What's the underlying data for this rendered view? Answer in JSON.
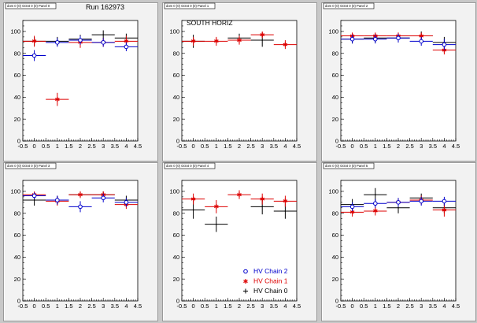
{
  "run_label": "Run 162973",
  "inset_label": "SOUTH HORIZ",
  "pad_titles": [
    "dom 0 (0) Octnt 0 (0) Panel 0",
    "dom 0 (0) Octnt 0 (0) Panel 1",
    "dom 0 (0) Octnt 0 (0) Panel 2",
    "dom 0 (0) Octnt 0 (0) Panel 3",
    "dom 0 (0) Octnt 0 (0) Panel 4",
    "dom 0 (0) Octnt 0 (0) Panel 5"
  ],
  "legend": [
    {
      "label": "HV Chain 2",
      "color": "#0000cc",
      "marker": "open-circle"
    },
    {
      "label": "HV Chain 1",
      "color": "#dd0000",
      "marker": "star"
    },
    {
      "label": "HV Chain 0",
      "color": "#000000",
      "marker": "cross"
    }
  ],
  "colors": {
    "chain2": "#0000cc",
    "chain1": "#dd0000",
    "chain0": "#000000"
  },
  "chart_data": [
    {
      "type": "scatter",
      "xlim": [
        -0.5,
        4.5
      ],
      "ylim": [
        0,
        110
      ],
      "xticks": [
        -0.5,
        0,
        0.5,
        1,
        1.5,
        2,
        2.5,
        3,
        3.5,
        4,
        4.5
      ],
      "yticks": [
        0,
        20,
        40,
        60,
        80,
        100
      ],
      "series": [
        {
          "name": "HV Chain 0",
          "color": "#000000",
          "marker": "cross",
          "x": [
            0,
            1,
            2,
            3,
            4
          ],
          "y": [
            91,
            91,
            93,
            97,
            94
          ],
          "yerr": [
            4,
            4,
            4,
            4,
            4
          ],
          "xerr": 0.5
        },
        {
          "name": "HV Chain 1",
          "color": "#dd0000",
          "marker": "star",
          "x": [
            0,
            1,
            2,
            3,
            4
          ],
          "y": [
            91,
            38,
            90,
            90,
            91
          ],
          "yerr": [
            5,
            6,
            5,
            4,
            5
          ],
          "xerr": 0.5
        },
        {
          "name": "HV Chain 2",
          "color": "#0000cc",
          "marker": "open-circle",
          "x": [
            0,
            1,
            2,
            3,
            4
          ],
          "y": [
            78,
            90,
            92,
            90,
            86
          ],
          "yerr": [
            5,
            4,
            4,
            4,
            4
          ],
          "xerr": 0.5
        }
      ]
    },
    {
      "type": "scatter",
      "xlim": [
        -0.5,
        4.5
      ],
      "ylim": [
        0,
        110
      ],
      "xticks": [
        -0.5,
        0,
        0.5,
        1,
        1.5,
        2,
        2.5,
        3,
        3.5,
        4,
        4.5
      ],
      "yticks": [
        0,
        20,
        40,
        60,
        80,
        100
      ],
      "series": [
        {
          "name": "HV Chain 0",
          "color": "#000000",
          "marker": "cross",
          "x": [
            0,
            2,
            3
          ],
          "y": [
            91,
            94,
            92
          ],
          "yerr": [
            6,
            4,
            6
          ],
          "xerr": 0.5
        },
        {
          "name": "HV Chain 1",
          "color": "#dd0000",
          "marker": "star",
          "x": [
            0,
            1,
            2,
            3,
            4
          ],
          "y": [
            91,
            91,
            92,
            97,
            88
          ],
          "yerr": [
            4,
            4,
            4,
            3,
            4
          ],
          "xerr": 0.5
        }
      ]
    },
    {
      "type": "scatter",
      "xlim": [
        -0.5,
        4.5
      ],
      "ylim": [
        0,
        110
      ],
      "xticks": [
        -0.5,
        0,
        0.5,
        1,
        1.5,
        2,
        2.5,
        3,
        3.5,
        4,
        4.5
      ],
      "yticks": [
        0,
        20,
        40,
        60,
        80,
        100
      ],
      "series": [
        {
          "name": "HV Chain 0",
          "color": "#000000",
          "marker": "cross",
          "x": [
            0,
            1,
            2,
            3,
            4
          ],
          "y": [
            93,
            94,
            94,
            96,
            90
          ],
          "yerr": [
            4,
            4,
            4,
            4,
            5
          ],
          "xerr": 0.5
        },
        {
          "name": "HV Chain 1",
          "color": "#dd0000",
          "marker": "star",
          "x": [
            0,
            1,
            2,
            3,
            4
          ],
          "y": [
            96,
            96,
            96,
            96,
            83
          ],
          "yerr": [
            3,
            3,
            3,
            3,
            4
          ],
          "xerr": 0.5
        },
        {
          "name": "HV Chain 2",
          "color": "#0000cc",
          "marker": "open-circle",
          "x": [
            0,
            1,
            2,
            3,
            4
          ],
          "y": [
            93,
            93,
            94,
            91,
            88
          ],
          "yerr": [
            4,
            4,
            4,
            4,
            5
          ],
          "xerr": 0.5
        }
      ]
    },
    {
      "type": "scatter",
      "xlim": [
        -0.5,
        4.5
      ],
      "ylim": [
        0,
        110
      ],
      "xticks": [
        -0.5,
        0,
        0.5,
        1,
        1.5,
        2,
        2.5,
        3,
        3.5,
        4,
        4.5
      ],
      "yticks": [
        0,
        20,
        40,
        60,
        80,
        100
      ],
      "series": [
        {
          "name": "HV Chain 0",
          "color": "#000000",
          "marker": "cross",
          "x": [
            0,
            1,
            2,
            3,
            4
          ],
          "y": [
            92,
            92,
            97,
            97,
            92
          ],
          "yerr": [
            5,
            4,
            3,
            3,
            4
          ],
          "xerr": 0.5
        },
        {
          "name": "HV Chain 1",
          "color": "#dd0000",
          "marker": "star",
          "x": [
            0,
            1,
            2,
            3,
            4
          ],
          "y": [
            97,
            91,
            97,
            97,
            88
          ],
          "yerr": [
            3,
            4,
            3,
            3,
            4
          ],
          "xerr": 0.5
        },
        {
          "name": "HV Chain 2",
          "color": "#0000cc",
          "marker": "open-circle",
          "x": [
            0,
            1,
            2,
            3,
            4
          ],
          "y": [
            96,
            92,
            86,
            94,
            90
          ],
          "yerr": [
            3,
            4,
            5,
            4,
            4
          ],
          "xerr": 0.5
        }
      ]
    },
    {
      "type": "scatter",
      "xlim": [
        -0.5,
        4.5
      ],
      "ylim": [
        0,
        110
      ],
      "xticks": [
        -0.5,
        0,
        0.5,
        1,
        1.5,
        2,
        2.5,
        3,
        3.5,
        4,
        4.5
      ],
      "yticks": [
        0,
        20,
        40,
        60,
        80,
        100
      ],
      "series": [
        {
          "name": "HV Chain 0",
          "color": "#000000",
          "marker": "cross",
          "x": [
            0,
            1,
            3,
            4
          ],
          "y": [
            83,
            70,
            86,
            82
          ],
          "yerr": [
            8,
            7,
            7,
            7
          ],
          "xerr": 0.5
        },
        {
          "name": "HV Chain 1",
          "color": "#dd0000",
          "marker": "star",
          "x": [
            0,
            1,
            2,
            3,
            4
          ],
          "y": [
            93,
            86,
            97,
            93,
            91
          ],
          "yerr": [
            5,
            6,
            4,
            5,
            5
          ],
          "xerr": 0.5
        }
      ]
    },
    {
      "type": "scatter",
      "xlim": [
        -0.5,
        4.5
      ],
      "ylim": [
        0,
        110
      ],
      "xticks": [
        -0.5,
        0,
        0.5,
        1,
        1.5,
        2,
        2.5,
        3,
        3.5,
        4,
        4.5
      ],
      "yticks": [
        0,
        20,
        40,
        60,
        80,
        100
      ],
      "series": [
        {
          "name": "HV Chain 0",
          "color": "#000000",
          "marker": "cross",
          "x": [
            0,
            1,
            2,
            3,
            4
          ],
          "y": [
            88,
            97,
            85,
            94,
            85
          ],
          "yerr": [
            5,
            6,
            5,
            4,
            5
          ],
          "xerr": 0.5
        },
        {
          "name": "HV Chain 1",
          "color": "#dd0000",
          "marker": "star",
          "x": [
            0,
            1,
            2,
            3,
            4
          ],
          "y": [
            81,
            82,
            90,
            92,
            83
          ],
          "yerr": [
            4,
            4,
            4,
            4,
            6
          ],
          "xerr": 0.5
        },
        {
          "name": "HV Chain 2",
          "color": "#0000cc",
          "marker": "open-circle",
          "x": [
            0,
            1,
            2,
            3,
            4
          ],
          "y": [
            86,
            89,
            90,
            91,
            91
          ],
          "yerr": [
            4,
            4,
            4,
            4,
            4
          ],
          "xerr": 0.5
        }
      ]
    }
  ]
}
